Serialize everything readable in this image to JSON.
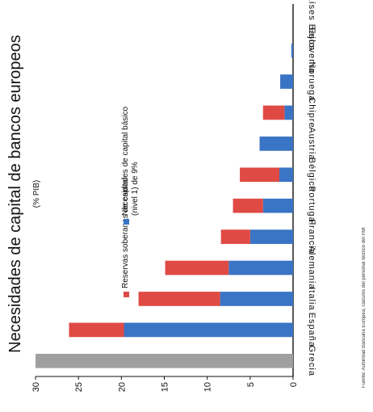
{
  "chart_data": {
    "type": "bar",
    "stacked": true,
    "orientation": "image rotated 90 degrees counter-clockwise; value axis vertical on the left",
    "title": "Necesidades de capital de bancos europeos",
    "subtitle": "(% PIB)",
    "categories": [
      "Grecia",
      "España",
      "Italia",
      "Alemania",
      "Francia",
      "Portugal",
      "Bélgica",
      "Austria",
      "Chipre",
      "Noruega",
      "Eslovenia",
      "Países Bajos"
    ],
    "series": [
      {
        "name": "Necesidades de capital básico (nivel 1) de 9%",
        "color": "#3a74c4",
        "values": [
          30,
          19.7,
          8.5,
          7.5,
          5.0,
          3.5,
          1.6,
          3.9,
          1.0,
          1.5,
          0.2,
          0.0
        ]
      },
      {
        "name": "Reservas soberanas de capital",
        "color": "#e04a44",
        "values": [
          0,
          6.4,
          9.5,
          7.4,
          3.4,
          3.5,
          4.6,
          0,
          2.5,
          0,
          0,
          0
        ]
      }
    ],
    "highlight": {
      "category": "Grecia",
      "color": "#a0a0a0"
    },
    "yticks": [
      "0",
      "5",
      "10",
      "15",
      "20",
      "25",
      "30"
    ],
    "ylim": [
      0,
      30
    ],
    "grid": false,
    "legend_position": "top-right",
    "footnote": "Fuente: Autoridad Bancaria Europea; cálculos del personal técnico del FMI"
  }
}
